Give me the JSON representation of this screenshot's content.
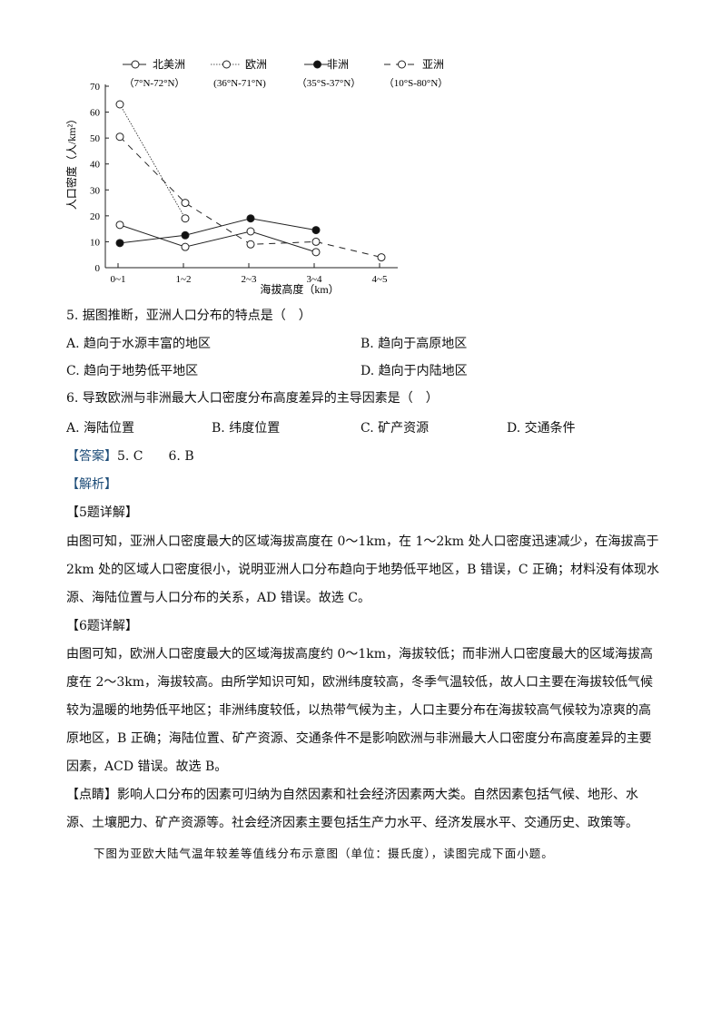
{
  "chart_data": {
    "type": "line",
    "xlabel": "海拔高度（km）",
    "ylabel": "人口密度（人/km²）",
    "categories": [
      "0~1",
      "1~2",
      "2~3",
      "3~4",
      "4~5"
    ],
    "ylim": [
      0,
      70
    ],
    "yticks": [
      "0",
      "10",
      "20",
      "30",
      "40",
      "50",
      "60",
      "70"
    ],
    "grid": false,
    "legend_placement": "top",
    "series": [
      {
        "name": "北美洲",
        "range": "（7°N-72°N）",
        "style": "solid-open",
        "values": [
          16.5,
          8,
          14,
          6,
          null
        ]
      },
      {
        "name": "欧洲",
        "range": "(36°N-71°N)",
        "style": "dotted-open",
        "values": [
          63,
          19,
          null,
          null,
          null
        ]
      },
      {
        "name": "非洲",
        "range": "（35°S-37°N）",
        "style": "solid-filled",
        "values": [
          9.5,
          12.5,
          19,
          14.5,
          null
        ]
      },
      {
        "name": "亚洲",
        "range": "（10°S-80°N）",
        "style": "dashed-open",
        "values": [
          50.5,
          25,
          9,
          10,
          4
        ]
      }
    ]
  },
  "q5": {
    "stem": "5. 据图推断，亚洲人口分布的特点是（　）",
    "a": "A. 趋向于水源丰富的地区",
    "b": "B. 趋向于高原地区",
    "c": "C. 趋向于地势低平地区",
    "d": "D. 趋向于内陆地区"
  },
  "q6": {
    "stem": "6. 导致欧洲与非洲最大人口密度分布高度差异的主导因素是（　）",
    "a": "A. 海陆位置",
    "b": "B. 纬度位置",
    "c": "C. 矿产资源",
    "d": "D. 交通条件"
  },
  "answer": {
    "label": "【答案】",
    "text": "5. C　　6. B"
  },
  "analysis_label": "【解析】",
  "detail5": {
    "label": "【5题详解】",
    "lines": [
      "由图可知，亚洲人口密度最大的区域海拔高度在 0～1km，在 1～2km 处人口密度迅速减少，在海拔高于",
      "2km 处的区域人口密度很小，说明亚洲人口分布趋向于地势低平地区，B 错误，C 正确；材料没有体现水",
      "源、海陆位置与人口分布的关系，AD 错误。故选 C。"
    ]
  },
  "detail6": {
    "label": "【6题详解】",
    "lines": [
      "由图可知，欧洲人口密度最大的区域海拔高度约 0～1km，海拔较低；而非洲人口密度最大的区域海拔高",
      "度在 2～3km，海拔较高。由所学知识可知，欧洲纬度较高，冬季气温较低，故人口主要在海拔较低气候",
      "较为温暖的地势低平地区；非洲纬度较低，以热带气候为主，人口主要分布在海拔较高气候较为凉爽的高",
      "原地区，B 正确；海陆位置、矿产资源、交通条件不是影响欧洲与非洲最大人口密度分布高度差异的主要",
      "因素，ACD 错误。故选 B。"
    ]
  },
  "comment": {
    "label": "【点睛】",
    "lines": [
      "影响人口分布的因素可归纳为自然因素和社会经济因素两大类。自然因素包括气候、地形、水",
      "源、土壤肥力、矿产资源等。社会经济因素主要包括生产力水平、经济发展水平、交通历史、政策等。"
    ]
  },
  "next_intro": "下图为亚欧大陆气温年较差等值线分布示意图（单位：摄氏度），读图完成下面小题。",
  "colors": {
    "text": "#111111",
    "label_blue": "#1f4e79"
  }
}
